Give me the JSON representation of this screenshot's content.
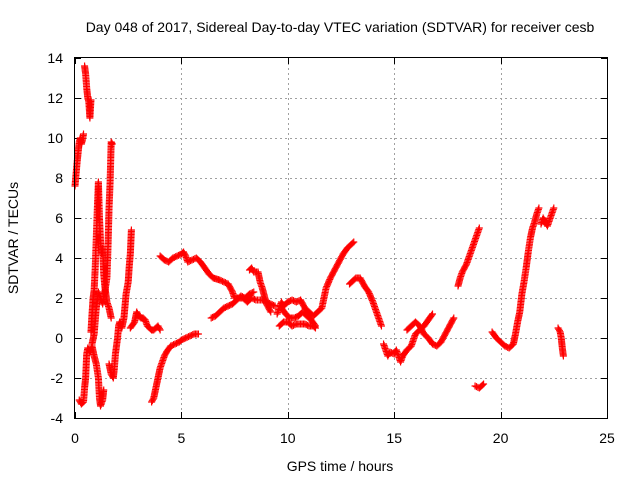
{
  "chart_data": {
    "type": "scatter",
    "title": "Day 048 of 2017, Sidereal Day-to-day VTEC variation (SDTVAR) for receiver cesb",
    "xlabel": "GPS time / hours",
    "ylabel": "SDTVAR / TECUs",
    "xlim": [
      0,
      25
    ],
    "ylim": [
      -4,
      14
    ],
    "xticks": [
      "0",
      "5",
      "10",
      "15",
      "20",
      "25"
    ],
    "yticks": [
      "-4",
      "-2",
      "0",
      "2",
      "4",
      "6",
      "8",
      "10",
      "12",
      "14"
    ],
    "grid": true,
    "marker": "+",
    "color": "#ff0000",
    "series": [
      {
        "name": "SDTVAR",
        "segments": [
          [
            [
              0.0,
              7.6
            ],
            [
              0.05,
              8.2
            ],
            [
              0.1,
              8.8
            ],
            [
              0.15,
              9.3
            ],
            [
              0.2,
              9.8
            ],
            [
              0.25,
              10.0
            ],
            [
              0.3,
              9.7
            ],
            [
              0.35,
              9.9
            ],
            [
              0.4,
              10.2
            ]
          ],
          [
            [
              0.2,
              -3.1
            ],
            [
              0.3,
              -3.3
            ],
            [
              0.4,
              -3.2
            ],
            [
              0.45,
              -2.5
            ],
            [
              0.5,
              -2.0
            ],
            [
              0.55,
              -0.8
            ],
            [
              0.6,
              -0.5
            ],
            [
              0.7,
              -0.7
            ],
            [
              0.8,
              -0.4
            ],
            [
              0.9,
              -0.9
            ],
            [
              1.0,
              -1.3
            ],
            [
              1.1,
              -2.0
            ],
            [
              1.15,
              -3.0
            ],
            [
              1.2,
              -3.4
            ],
            [
              1.3,
              -3.1
            ],
            [
              1.35,
              -2.6
            ]
          ],
          [
            [
              0.45,
              13.6
            ],
            [
              0.5,
              13.2
            ],
            [
              0.55,
              12.5
            ],
            [
              0.6,
              12.0
            ],
            [
              0.65,
              11.8
            ],
            [
              0.7,
              11.0
            ],
            [
              0.75,
              11.9
            ]
          ],
          [
            [
              0.75,
              0.3
            ],
            [
              0.8,
              1.2
            ],
            [
              0.85,
              2.0
            ],
            [
              0.9,
              2.4
            ],
            [
              0.95,
              3.5
            ],
            [
              1.0,
              5.0
            ],
            [
              1.05,
              6.5
            ],
            [
              1.1,
              7.8
            ],
            [
              1.15,
              6.0
            ],
            [
              1.2,
              4.8
            ],
            [
              1.25,
              4.2
            ],
            [
              1.3,
              4.5
            ],
            [
              1.35,
              3.2
            ],
            [
              1.4,
              2.6
            ],
            [
              1.45,
              2.2
            ],
            [
              1.5,
              1.8
            ],
            [
              1.6,
              1.5
            ],
            [
              1.7,
              1.0
            ]
          ],
          [
            [
              0.8,
              -0.3
            ],
            [
              0.9,
              0.2
            ],
            [
              1.0,
              1.5
            ],
            [
              1.1,
              2.3
            ],
            [
              1.2,
              2.0
            ],
            [
              1.3,
              1.7
            ],
            [
              1.4,
              2.3
            ],
            [
              1.5,
              3.0
            ],
            [
              1.55,
              4.5
            ],
            [
              1.6,
              6.5
            ],
            [
              1.65,
              7.8
            ],
            [
              1.7,
              9.8
            ],
            [
              1.75,
              9.7
            ]
          ],
          [
            [
              1.6,
              -1.3
            ],
            [
              1.7,
              -1.8
            ],
            [
              1.8,
              -2.0
            ],
            [
              1.85,
              -1.5
            ],
            [
              1.9,
              -0.8
            ],
            [
              2.0,
              0.0
            ],
            [
              2.05,
              0.6
            ],
            [
              2.1,
              0.8
            ],
            [
              2.2,
              0.5
            ],
            [
              2.3,
              1.0
            ],
            [
              2.4,
              2.2
            ],
            [
              2.5,
              2.8
            ],
            [
              2.55,
              3.6
            ],
            [
              2.6,
              4.2
            ],
            [
              2.65,
              5.4
            ]
          ],
          [
            [
              2.6,
              0.5
            ],
            [
              2.8,
              0.8
            ],
            [
              2.9,
              1.3
            ],
            [
              3.0,
              1.1
            ],
            [
              3.1,
              1.0
            ],
            [
              3.2,
              1.0
            ],
            [
              3.3,
              0.9
            ],
            [
              3.4,
              0.6
            ],
            [
              3.5,
              0.5
            ],
            [
              3.6,
              0.4
            ],
            [
              3.7,
              0.4
            ],
            [
              3.8,
              0.5
            ],
            [
              3.9,
              0.6
            ],
            [
              4.0,
              0.4
            ]
          ],
          [
            [
              3.6,
              -3.2
            ],
            [
              3.7,
              -3.0
            ],
            [
              3.8,
              -2.5
            ],
            [
              3.9,
              -2.0
            ],
            [
              4.0,
              -1.5
            ],
            [
              4.1,
              -1.2
            ],
            [
              4.2,
              -0.9
            ],
            [
              4.3,
              -0.7
            ],
            [
              4.5,
              -0.4
            ],
            [
              4.7,
              -0.3
            ],
            [
              4.9,
              -0.2
            ],
            [
              5.0,
              -0.1
            ],
            [
              5.2,
              0.0
            ],
            [
              5.4,
              0.1
            ],
            [
              5.6,
              0.2
            ],
            [
              5.8,
              0.2
            ]
          ],
          [
            [
              4.0,
              4.1
            ],
            [
              4.2,
              3.9
            ],
            [
              4.4,
              3.8
            ],
            [
              4.6,
              4.0
            ],
            [
              4.8,
              4.1
            ],
            [
              5.0,
              4.2
            ],
            [
              5.1,
              4.3
            ],
            [
              5.2,
              4.1
            ],
            [
              5.3,
              3.8
            ],
            [
              5.5,
              3.9
            ],
            [
              5.7,
              4.0
            ],
            [
              5.9,
              3.8
            ],
            [
              6.1,
              3.5
            ],
            [
              6.3,
              3.2
            ],
            [
              6.5,
              3.0
            ],
            [
              6.8,
              2.9
            ],
            [
              7.0,
              2.8
            ],
            [
              7.2,
              2.7
            ],
            [
              7.4,
              2.3
            ],
            [
              7.5,
              2.0
            ],
            [
              7.7,
              2.0
            ],
            [
              7.9,
              2.0
            ],
            [
              8.1,
              1.8
            ],
            [
              8.3,
              2.0
            ],
            [
              8.5,
              1.9
            ],
            [
              8.8,
              1.9
            ],
            [
              9.0,
              1.8
            ],
            [
              9.2,
              1.7
            ],
            [
              9.4,
              1.6
            ]
          ],
          [
            [
              6.4,
              1.0
            ],
            [
              6.6,
              1.1
            ],
            [
              6.8,
              1.3
            ],
            [
              7.0,
              1.5
            ],
            [
              7.2,
              1.6
            ],
            [
              7.4,
              1.7
            ],
            [
              7.6,
              1.9
            ],
            [
              7.8,
              2.1
            ],
            [
              8.0,
              2.0
            ],
            [
              8.2,
              2.2
            ],
            [
              8.4,
              2.3
            ]
          ],
          [
            [
              8.2,
              3.4
            ],
            [
              8.3,
              3.5
            ],
            [
              8.4,
              3.3
            ],
            [
              8.6,
              3.3
            ],
            [
              8.7,
              2.8
            ],
            [
              8.8,
              2.5
            ],
            [
              8.9,
              2.1
            ],
            [
              9.0,
              1.7
            ],
            [
              9.1,
              1.5
            ],
            [
              9.2,
              1.3
            ]
          ],
          [
            [
              9.5,
              1.2
            ],
            [
              9.6,
              1.5
            ],
            [
              9.7,
              1.8
            ],
            [
              9.8,
              1.6
            ],
            [
              10.0,
              1.8
            ],
            [
              10.2,
              1.9
            ],
            [
              10.4,
              1.8
            ],
            [
              10.6,
              1.9
            ],
            [
              10.8,
              1.5
            ],
            [
              11.0,
              1.3
            ],
            [
              11.2,
              1.1
            ],
            [
              11.4,
              1.3
            ],
            [
              11.6,
              1.5
            ],
            [
              11.8,
              2.5
            ],
            [
              12.0,
              3.0
            ],
            [
              12.2,
              3.4
            ],
            [
              12.4,
              3.8
            ],
            [
              12.6,
              4.2
            ],
            [
              12.8,
              4.5
            ],
            [
              13.0,
              4.7
            ],
            [
              13.1,
              4.8
            ]
          ],
          [
            [
              9.6,
              0.6
            ],
            [
              9.8,
              0.8
            ],
            [
              10.0,
              0.8
            ],
            [
              10.2,
              0.6
            ],
            [
              10.4,
              0.7
            ],
            [
              10.6,
              0.7
            ],
            [
              10.8,
              0.7
            ],
            [
              11.0,
              0.6
            ],
            [
              11.2,
              0.6
            ],
            [
              11.3,
              0.5
            ]
          ],
          [
            [
              9.7,
              1.5
            ],
            [
              9.9,
              1.2
            ],
            [
              10.1,
              1.0
            ],
            [
              10.3,
              1.0
            ],
            [
              10.5,
              1.1
            ],
            [
              10.7,
              1.3
            ],
            [
              10.9,
              1.1
            ],
            [
              11.1,
              0.9
            ],
            [
              11.3,
              0.6
            ]
          ],
          [
            [
              12.9,
              2.7
            ],
            [
              13.0,
              2.8
            ],
            [
              13.2,
              3.0
            ],
            [
              13.4,
              3.0
            ],
            [
              13.6,
              2.6
            ],
            [
              13.8,
              2.3
            ],
            [
              14.0,
              1.8
            ],
            [
              14.2,
              1.2
            ],
            [
              14.3,
              0.9
            ],
            [
              14.4,
              0.6
            ]
          ],
          [
            [
              14.5,
              -0.3
            ],
            [
              14.6,
              -0.6
            ],
            [
              14.7,
              -0.9
            ],
            [
              14.8,
              -0.7
            ],
            [
              15.0,
              -0.8
            ],
            [
              15.1,
              -0.6
            ],
            [
              15.2,
              -0.9
            ],
            [
              15.3,
              -1.2
            ],
            [
              15.4,
              -0.9
            ],
            [
              15.6,
              -0.6
            ],
            [
              15.8,
              -0.4
            ],
            [
              16.0,
              0.2
            ],
            [
              16.2,
              0.4
            ],
            [
              16.4,
              0.6
            ],
            [
              16.6,
              0.9
            ],
            [
              16.8,
              1.2
            ]
          ],
          [
            [
              15.6,
              0.4
            ],
            [
              15.8,
              0.6
            ],
            [
              16.0,
              0.8
            ],
            [
              16.2,
              0.6
            ],
            [
              16.4,
              0.2
            ],
            [
              16.6,
              0.0
            ],
            [
              16.8,
              -0.3
            ],
            [
              17.0,
              -0.4
            ],
            [
              17.2,
              -0.2
            ],
            [
              17.4,
              0.2
            ],
            [
              17.6,
              0.6
            ],
            [
              17.8,
              1.0
            ]
          ],
          [
            [
              18.0,
              2.6
            ],
            [
              18.1,
              3.0
            ],
            [
              18.2,
              3.3
            ],
            [
              18.3,
              3.5
            ],
            [
              18.4,
              3.7
            ],
            [
              18.5,
              4.0
            ],
            [
              18.6,
              4.3
            ],
            [
              18.7,
              4.6
            ],
            [
              18.8,
              4.9
            ],
            [
              18.9,
              5.2
            ],
            [
              19.0,
              5.5
            ]
          ],
          [
            [
              18.8,
              -2.4
            ],
            [
              19.0,
              -2.5
            ],
            [
              19.2,
              -2.3
            ]
          ],
          [
            [
              19.6,
              0.3
            ],
            [
              19.8,
              0.0
            ],
            [
              20.0,
              -0.2
            ],
            [
              20.2,
              -0.4
            ],
            [
              20.4,
              -0.5
            ],
            [
              20.6,
              -0.3
            ],
            [
              20.7,
              0.2
            ],
            [
              20.8,
              0.8
            ],
            [
              20.9,
              1.3
            ],
            [
              21.0,
              2.2
            ],
            [
              21.1,
              2.8
            ],
            [
              21.2,
              3.5
            ],
            [
              21.3,
              4.3
            ],
            [
              21.4,
              5.0
            ],
            [
              21.5,
              5.5
            ],
            [
              21.6,
              5.8
            ],
            [
              21.7,
              6.2
            ],
            [
              21.8,
              6.5
            ]
          ],
          [
            [
              21.9,
              5.7
            ],
            [
              22.0,
              6.0
            ],
            [
              22.1,
              5.8
            ],
            [
              22.2,
              5.6
            ],
            [
              22.3,
              5.9
            ],
            [
              22.4,
              6.2
            ],
            [
              22.5,
              6.5
            ]
          ],
          [
            [
              22.7,
              0.5
            ],
            [
              22.8,
              0.3
            ],
            [
              22.85,
              0.0
            ],
            [
              22.9,
              -0.5
            ],
            [
              22.95,
              -0.9
            ]
          ]
        ]
      }
    ]
  }
}
